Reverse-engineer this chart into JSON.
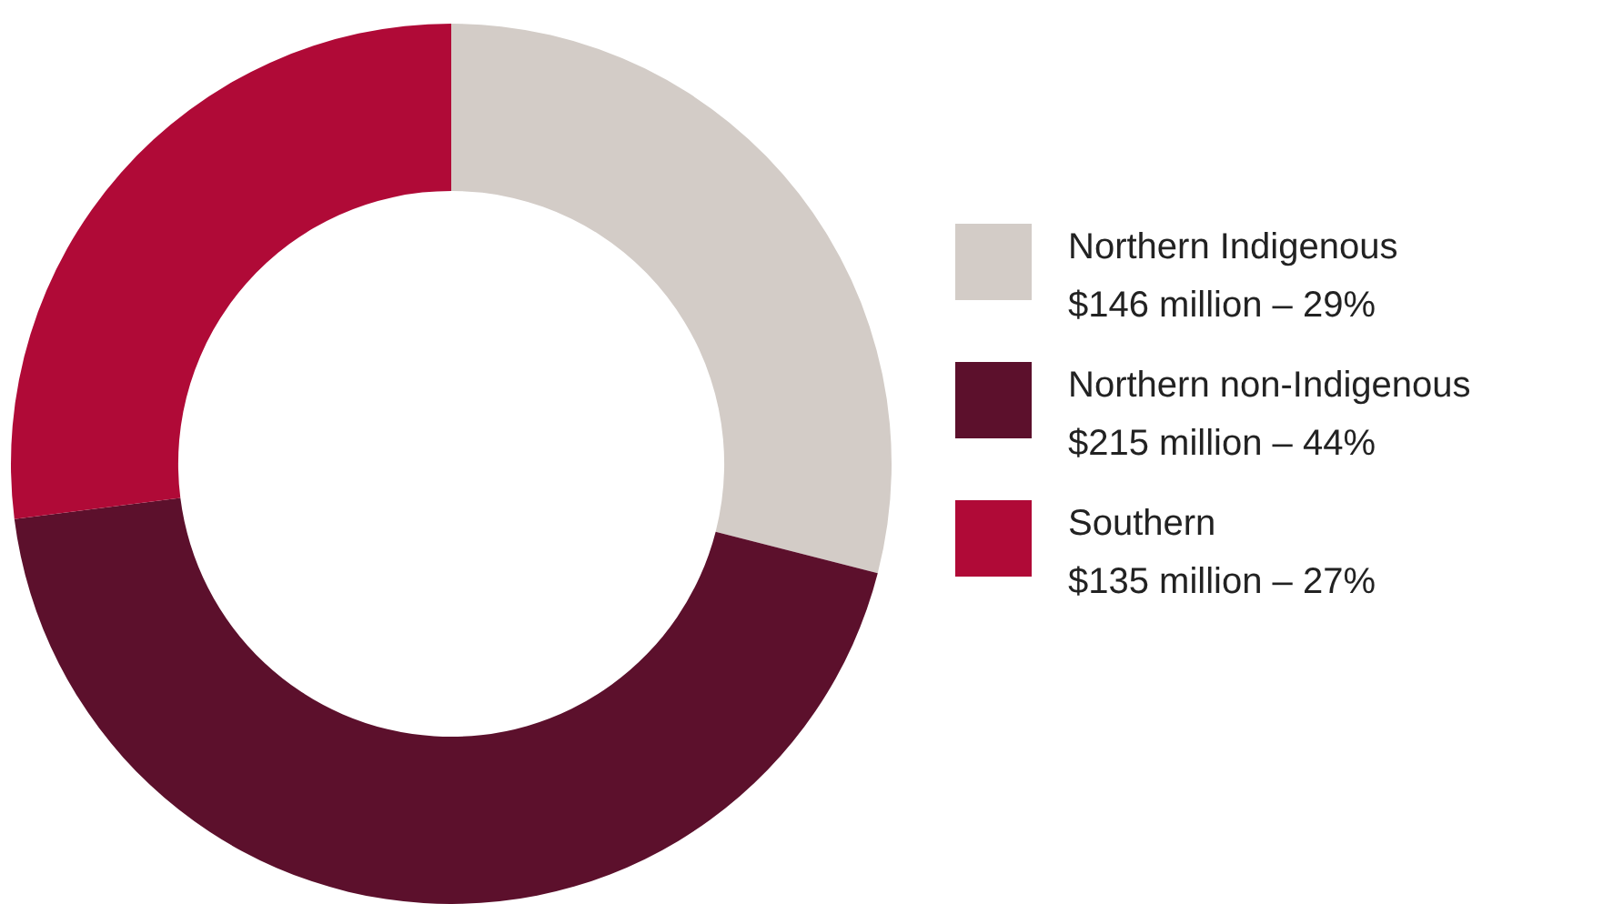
{
  "chart_data": {
    "type": "donut",
    "categories": [
      "Northern Indigenous\n$146 million – 29%",
      "Northern non-Indigenous\n$215 million – 44%",
      "Southern\n$135 million – 27%"
    ],
    "values": [
      29,
      44,
      27
    ],
    "colors": [
      "#d3ccc7",
      "#5c102c",
      "#b00a37"
    ],
    "legend": "right"
  }
}
